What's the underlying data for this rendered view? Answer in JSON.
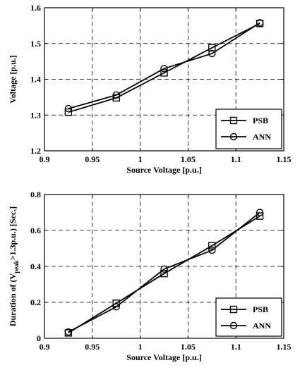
{
  "chart_data": [
    {
      "type": "line",
      "title": "",
      "xlabel": "Source Voltage [p.u.]",
      "ylabel": "Voltage [p.u.]",
      "xlim": [
        0.9,
        1.15
      ],
      "ylim": [
        1.2,
        1.6
      ],
      "x_ticks": [
        "0.9",
        "0.95",
        "1",
        "1.05",
        "1.1",
        "1.15"
      ],
      "y_ticks": [
        "1.2",
        "1.3",
        "1.4",
        "1.5",
        "1.6"
      ],
      "grid": true,
      "legend_position": "bottom-right",
      "x": [
        0.925,
        0.975,
        1.025,
        1.075,
        1.125
      ],
      "series": [
        {
          "name": "PSB",
          "marker": "square",
          "values": [
            1.308,
            1.348,
            1.418,
            1.488,
            1.556
          ]
        },
        {
          "name": "ANN",
          "marker": "circle",
          "values": [
            1.318,
            1.356,
            1.43,
            1.472,
            1.558
          ]
        }
      ]
    },
    {
      "type": "line",
      "title": "",
      "xlabel": "Source Voltage [p.u.]",
      "ylabel_parts": {
        "prefix": "Duration of (V",
        "sub": "peak",
        "suffix": ">1.3p.u.) [Sec.]"
      },
      "xlim": [
        0.9,
        1.15
      ],
      "ylim": [
        0,
        0.8
      ],
      "x_ticks": [
        "0.9",
        "0.95",
        "1",
        "1.05",
        "1.1",
        "1.15"
      ],
      "y_ticks": [
        "0",
        "0.2",
        "0.4",
        "0.6",
        "0.8"
      ],
      "grid": true,
      "legend_position": "bottom-right",
      "x": [
        0.925,
        0.975,
        1.025,
        1.075,
        1.125
      ],
      "series": [
        {
          "name": "PSB",
          "marker": "square",
          "values": [
            0.03,
            0.195,
            0.36,
            0.515,
            0.68
          ]
        },
        {
          "name": "ANN",
          "marker": "circle",
          "values": [
            0.035,
            0.175,
            0.385,
            0.49,
            0.7
          ]
        }
      ]
    }
  ]
}
